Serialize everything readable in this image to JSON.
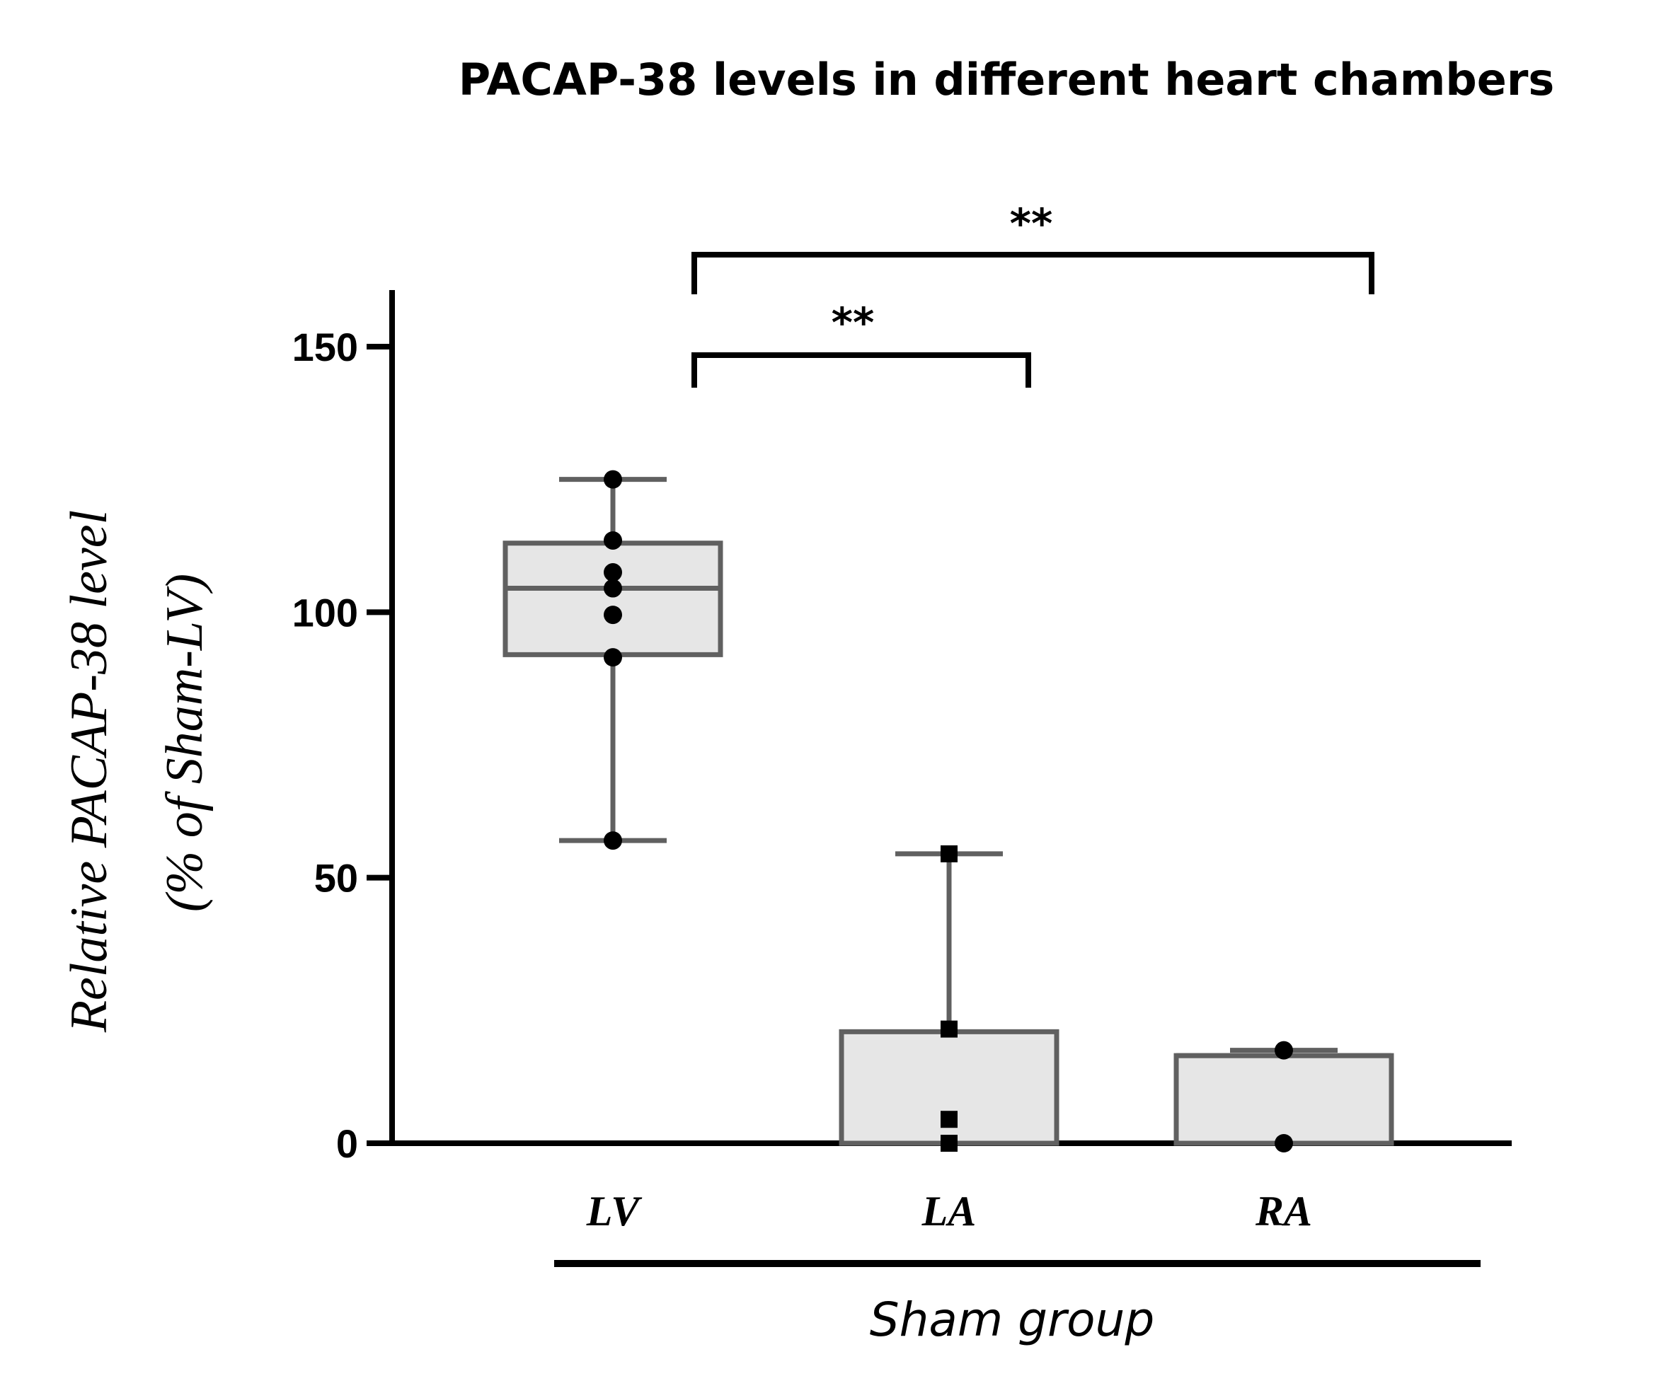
{
  "chart_data": {
    "type": "box",
    "title": "PACAP-38 levels in different heart chambers",
    "ylabel_line1": "Relative PACAP-38 level",
    "ylabel_line2": "(% of Sham-LV)",
    "xlabel": "Sham group",
    "ylim": [
      0,
      160
    ],
    "yticks": [
      0,
      50,
      100,
      150
    ],
    "ytick_labels": [
      "0",
      "50",
      "100",
      "150"
    ],
    "categories": [
      "LV",
      "LA",
      "RA"
    ],
    "boxes": [
      {
        "name": "LV",
        "min": 57,
        "q1": 92,
        "median": 104.5,
        "q3": 113,
        "max": 125,
        "points": [
          125,
          113.5,
          107.5,
          104.5,
          99.5,
          91.5,
          57
        ],
        "marker": "circle"
      },
      {
        "name": "LA",
        "min": 0,
        "q1": 0,
        "median": 0,
        "q3": 21,
        "max": 54.5,
        "points": [
          54.5,
          21.5,
          4.5,
          0
        ],
        "marker": "square"
      },
      {
        "name": "RA",
        "min": 0,
        "q1": 0,
        "median": 16.5,
        "q3": 16.5,
        "max": 17.5,
        "points": [
          17.5,
          0
        ],
        "marker": "circle"
      }
    ],
    "significance": [
      {
        "from": "LV",
        "to": "LA",
        "label": "**"
      },
      {
        "from": "LV",
        "to": "RA",
        "label": "**"
      }
    ],
    "colors": {
      "box_fill": "#e6e6e6",
      "box_stroke": "#606060",
      "axis": "#000000",
      "point": "#000000"
    }
  }
}
